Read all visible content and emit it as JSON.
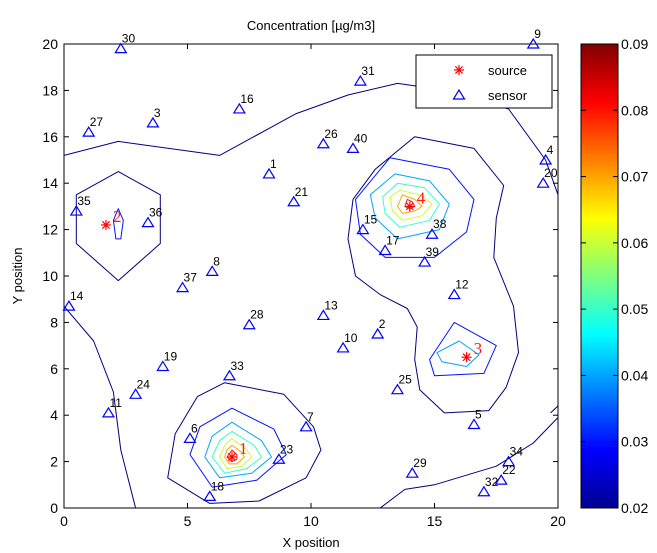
{
  "chart_data": {
    "type": "contour",
    "title": "Concentration [µg/m3]",
    "xlabel": "X position",
    "ylabel": "Y position",
    "xlim": [
      0,
      20
    ],
    "ylim": [
      0,
      20
    ],
    "xticks": [
      "0",
      "5",
      "10",
      "15",
      "20"
    ],
    "yticks": [
      "0",
      "2",
      "4",
      "6",
      "8",
      "10",
      "12",
      "14",
      "16",
      "18",
      "20"
    ],
    "colorbar": {
      "colormap": "jet",
      "range": [
        0.02,
        0.09
      ],
      "ticks": [
        "0.02",
        "0.03",
        "0.04",
        "0.05",
        "0.06",
        "0.07",
        "0.08",
        "0.09"
      ]
    },
    "legend": {
      "location": "top-right",
      "entries": [
        {
          "label": "source",
          "marker": "*",
          "color": "#ff0000"
        },
        {
          "label": "sensor",
          "marker": "triangle",
          "color": "#0000ff"
        }
      ]
    },
    "sources": [
      {
        "id": "1",
        "x": 6.8,
        "y": 2.2
      },
      {
        "id": "2",
        "x": 1.7,
        "y": 12.2
      },
      {
        "id": "3",
        "x": 16.3,
        "y": 6.5
      },
      {
        "id": "4",
        "x": 14.0,
        "y": 13.0
      }
    ],
    "sensors": [
      {
        "id": "1",
        "x": 8.3,
        "y": 14.4
      },
      {
        "id": "2",
        "x": 12.7,
        "y": 7.5
      },
      {
        "id": "3",
        "x": 3.6,
        "y": 16.6
      },
      {
        "id": "4",
        "x": 19.5,
        "y": 15.0
      },
      {
        "id": "5",
        "x": 16.6,
        "y": 3.6
      },
      {
        "id": "6",
        "x": 5.1,
        "y": 3.0
      },
      {
        "id": "7",
        "x": 9.8,
        "y": 3.5
      },
      {
        "id": "8",
        "x": 6.0,
        "y": 10.2
      },
      {
        "id": "9",
        "x": 19.0,
        "y": 20.0
      },
      {
        "id": "10",
        "x": 11.3,
        "y": 6.9
      },
      {
        "id": "11",
        "x": 1.8,
        "y": 4.1
      },
      {
        "id": "12",
        "x": 15.8,
        "y": 9.2
      },
      {
        "id": "13",
        "x": 10.5,
        "y": 8.3
      },
      {
        "id": "14",
        "x": 0.2,
        "y": 8.7
      },
      {
        "id": "15",
        "x": 12.1,
        "y": 12.0
      },
      {
        "id": "16",
        "x": 7.1,
        "y": 17.2
      },
      {
        "id": "17",
        "x": 13.0,
        "y": 11.1
      },
      {
        "id": "18",
        "x": 5.9,
        "y": 0.5
      },
      {
        "id": "19",
        "x": 4.0,
        "y": 6.1
      },
      {
        "id": "20",
        "x": 19.4,
        "y": 14.0
      },
      {
        "id": "21",
        "x": 9.3,
        "y": 13.2
      },
      {
        "id": "22",
        "x": 17.7,
        "y": 1.2
      },
      {
        "id": "23",
        "x": 8.7,
        "y": 2.1
      },
      {
        "id": "24",
        "x": 2.9,
        "y": 4.9
      },
      {
        "id": "25",
        "x": 13.5,
        "y": 5.1
      },
      {
        "id": "26",
        "x": 10.5,
        "y": 15.7
      },
      {
        "id": "27",
        "x": 1.0,
        "y": 16.2
      },
      {
        "id": "28",
        "x": 7.5,
        "y": 7.9
      },
      {
        "id": "29",
        "x": 14.1,
        "y": 1.5
      },
      {
        "id": "30",
        "x": 2.3,
        "y": 19.8
      },
      {
        "id": "31",
        "x": 12.0,
        "y": 18.4
      },
      {
        "id": "32",
        "x": 17.0,
        "y": 0.7
      },
      {
        "id": "33",
        "x": 6.7,
        "y": 5.7
      },
      {
        "id": "34",
        "x": 18.0,
        "y": 2.0
      },
      {
        "id": "35",
        "x": 0.5,
        "y": 12.8
      },
      {
        "id": "36",
        "x": 3.4,
        "y": 12.3
      },
      {
        "id": "37",
        "x": 4.8,
        "y": 9.5
      },
      {
        "id": "38",
        "x": 14.9,
        "y": 11.8
      },
      {
        "id": "39",
        "x": 14.6,
        "y": 10.6
      },
      {
        "id": "40",
        "x": 11.7,
        "y": 15.5
      }
    ],
    "contours": [
      {
        "level": 0.02,
        "closed": false,
        "points": [
          [
            0,
            15.2
          ],
          [
            2.2,
            15.8
          ],
          [
            6.3,
            15.2
          ],
          [
            9.4,
            17.0
          ],
          [
            11.5,
            17.8
          ],
          [
            13.5,
            18.3
          ],
          [
            15.5,
            18.0
          ],
          [
            18.0,
            17.2
          ],
          [
            19.5,
            15.0
          ],
          [
            20,
            13.5
          ]
        ]
      },
      {
        "level": 0.02,
        "closed": false,
        "points": [
          [
            0,
            8.7
          ],
          [
            1.2,
            7.2
          ],
          [
            2.0,
            5.0
          ],
          [
            2.3,
            2.5
          ],
          [
            2.9,
            0
          ]
        ]
      },
      {
        "level": 0.02,
        "closed": false,
        "points": [
          [
            12.8,
            0
          ],
          [
            13.8,
            0.8
          ],
          [
            15.0,
            1.0
          ],
          [
            17.5,
            1.8
          ],
          [
            19.0,
            2.8
          ],
          [
            20,
            3.9
          ]
        ]
      },
      {
        "level": 0.02,
        "closed": false,
        "points": [
          [
            19.7,
            4.1
          ],
          [
            20,
            4.4
          ]
        ]
      },
      {
        "level": 0.02,
        "closed": true,
        "points": [
          [
            12.6,
            14.6
          ],
          [
            14.2,
            16.0
          ],
          [
            16.6,
            15.5
          ],
          [
            17.8,
            13.9
          ],
          [
            17.5,
            12.5
          ],
          [
            17.4,
            10.8
          ],
          [
            18.2,
            8.7
          ],
          [
            18.4,
            6.7
          ],
          [
            17.9,
            5.2
          ],
          [
            17.2,
            4.2
          ],
          [
            15.4,
            4.1
          ],
          [
            14.4,
            5.1
          ],
          [
            14.2,
            6.4
          ],
          [
            14.3,
            7.8
          ],
          [
            13.9,
            8.6
          ],
          [
            12.8,
            9.2
          ],
          [
            11.8,
            10.0
          ],
          [
            11.5,
            11.6
          ],
          [
            11.7,
            13.3
          ]
        ]
      },
      {
        "level": 0.02,
        "closed": true,
        "points": [
          [
            2.2,
            14.5
          ],
          [
            3.9,
            13.5
          ],
          [
            3.9,
            11.4
          ],
          [
            2.2,
            9.8
          ],
          [
            0.5,
            11.4
          ],
          [
            0.5,
            13.5
          ]
        ]
      },
      {
        "level": 0.02,
        "closed": true,
        "points": [
          [
            6.5,
            5.4
          ],
          [
            8.9,
            4.9
          ],
          [
            10.1,
            3.5
          ],
          [
            10.4,
            2.5
          ],
          [
            9.8,
            1.3
          ],
          [
            7.9,
            0.3
          ],
          [
            5.9,
            0.2
          ],
          [
            4.2,
            1.3
          ],
          [
            4.5,
            3.2
          ],
          [
            5.4,
            4.8
          ]
        ]
      },
      {
        "level": 0.03,
        "closed": true,
        "points": [
          [
            13.2,
            15.1
          ],
          [
            15.6,
            14.6
          ],
          [
            16.6,
            13.3
          ],
          [
            16.3,
            11.9
          ],
          [
            15.0,
            10.8
          ],
          [
            13.0,
            10.8
          ],
          [
            12.0,
            11.8
          ],
          [
            11.8,
            13.3
          ]
        ]
      },
      {
        "level": 0.03,
        "closed": true,
        "points": [
          [
            15.8,
            8.0
          ],
          [
            17.5,
            7.0
          ],
          [
            17.0,
            5.8
          ],
          [
            15.0,
            5.7
          ],
          [
            14.8,
            6.4
          ]
        ]
      },
      {
        "level": 0.03,
        "closed": true,
        "points": [
          [
            6.8,
            4.3
          ],
          [
            8.5,
            3.4
          ],
          [
            9.0,
            2.3
          ],
          [
            7.8,
            1.2
          ],
          [
            6.0,
            0.9
          ],
          [
            5.1,
            2.3
          ],
          [
            5.5,
            3.5
          ]
        ]
      },
      {
        "level": 0.03,
        "closed": true,
        "points": [
          [
            2.2,
            12.9
          ],
          [
            2.4,
            12.4
          ],
          [
            2.3,
            11.6
          ],
          [
            2.1,
            11.6
          ],
          [
            2.0,
            12.4
          ]
        ]
      },
      {
        "level": 0.04,
        "closed": true,
        "points": [
          [
            13.4,
            14.4
          ],
          [
            14.8,
            14.1
          ],
          [
            15.6,
            13.1
          ],
          [
            15.2,
            12.0
          ],
          [
            13.5,
            11.6
          ],
          [
            12.6,
            12.5
          ],
          [
            12.4,
            13.5
          ]
        ]
      },
      {
        "level": 0.04,
        "closed": true,
        "points": [
          [
            16.0,
            7.2
          ],
          [
            16.8,
            6.6
          ],
          [
            16.3,
            6.1
          ],
          [
            15.3,
            6.3
          ],
          [
            15.1,
            6.7
          ]
        ]
      },
      {
        "level": 0.04,
        "closed": true,
        "points": [
          [
            6.8,
            3.7
          ],
          [
            8.0,
            2.9
          ],
          [
            8.4,
            2.2
          ],
          [
            7.6,
            1.5
          ],
          [
            6.3,
            1.3
          ],
          [
            5.7,
            2.2
          ],
          [
            6.0,
            3.1
          ]
        ]
      },
      {
        "level": 0.05,
        "closed": true,
        "points": [
          [
            13.5,
            14.0
          ],
          [
            14.6,
            13.8
          ],
          [
            15.2,
            13.1
          ],
          [
            14.8,
            12.4
          ],
          [
            13.6,
            12.1
          ],
          [
            13.0,
            12.7
          ],
          [
            12.9,
            13.4
          ]
        ]
      },
      {
        "level": 0.05,
        "closed": true,
        "points": [
          [
            6.8,
            3.3
          ],
          [
            7.7,
            2.7
          ],
          [
            8.0,
            2.2
          ],
          [
            7.4,
            1.7
          ],
          [
            6.5,
            1.5
          ],
          [
            6.0,
            2.2
          ],
          [
            6.3,
            2.9
          ]
        ]
      },
      {
        "level": 0.06,
        "closed": true,
        "points": [
          [
            13.6,
            13.7
          ],
          [
            14.4,
            13.5
          ],
          [
            14.9,
            13.1
          ],
          [
            14.5,
            12.6
          ],
          [
            13.7,
            12.4
          ],
          [
            13.3,
            12.8
          ],
          [
            13.2,
            13.4
          ]
        ]
      },
      {
        "level": 0.06,
        "closed": true,
        "points": [
          [
            6.8,
            3.0
          ],
          [
            7.4,
            2.5
          ],
          [
            7.6,
            2.2
          ],
          [
            7.2,
            1.8
          ],
          [
            6.6,
            1.7
          ],
          [
            6.3,
            2.2
          ],
          [
            6.5,
            2.7
          ]
        ]
      },
      {
        "level": 0.07,
        "closed": true,
        "points": [
          [
            13.7,
            13.5
          ],
          [
            14.2,
            13.3
          ],
          [
            14.5,
            13.0
          ],
          [
            14.2,
            12.8
          ],
          [
            13.7,
            12.7
          ],
          [
            13.5,
            13.0
          ]
        ]
      },
      {
        "level": 0.07,
        "closed": true,
        "points": [
          [
            6.8,
            2.7
          ],
          [
            7.2,
            2.4
          ],
          [
            7.3,
            2.2
          ],
          [
            7.0,
            1.9
          ],
          [
            6.7,
            1.9
          ],
          [
            6.5,
            2.2
          ],
          [
            6.6,
            2.5
          ]
        ]
      },
      {
        "level": 0.08,
        "closed": true,
        "points": [
          [
            13.9,
            13.3
          ],
          [
            14.1,
            13.2
          ],
          [
            14.2,
            13.0
          ],
          [
            14.0,
            12.9
          ],
          [
            13.8,
            13.0
          ]
        ]
      },
      {
        "level": 0.08,
        "closed": true,
        "points": [
          [
            6.8,
            2.5
          ],
          [
            7.0,
            2.3
          ],
          [
            7.0,
            2.1
          ],
          [
            6.8,
            2.0
          ],
          [
            6.6,
            2.2
          ]
        ]
      }
    ]
  }
}
